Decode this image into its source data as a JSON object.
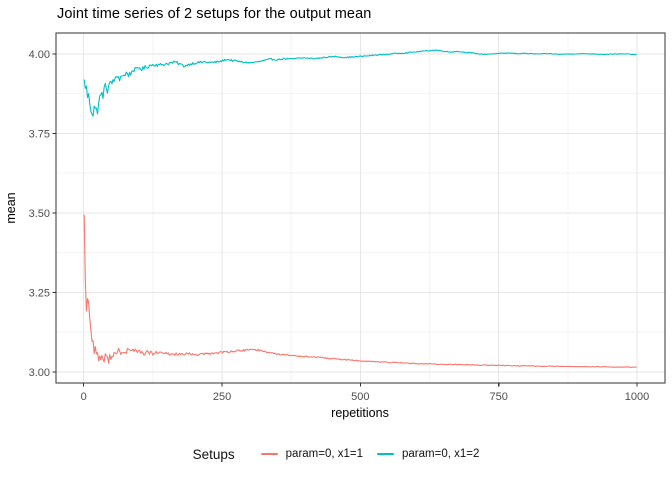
{
  "chart_data": {
    "type": "line",
    "title": "Joint time series of 2 setups for the output mean",
    "xlabel": "repetitions",
    "ylabel": "mean",
    "legend_title": "Setups",
    "legend_position": "bottom",
    "grid": "major-and-minor",
    "xlim": [
      -50,
      1050.5
    ],
    "ylim": [
      2.965,
      4.066
    ],
    "xticks": [
      0,
      250,
      500,
      750,
      1000
    ],
    "xtick_labels": [
      "0",
      "250",
      "500",
      "750",
      "1000"
    ],
    "yticks": [
      3.0,
      3.25,
      3.5,
      3.75,
      4.0
    ],
    "ytick_labels": [
      "3.00",
      "3.25",
      "3.50",
      "3.75",
      "4.00"
    ],
    "x_minor": [
      125,
      375,
      625,
      875
    ],
    "y_minor": [
      3.125,
      3.375,
      3.625,
      3.875
    ],
    "colors": {
      "major_grid": "#E6E6E6",
      "minor_grid": "#F3F3F3",
      "panel_border": "#333333",
      "tick_mark": "#333333",
      "tick_label": "#4D4D4D",
      "axis_title": "#000000",
      "background": "#FFFFFF"
    },
    "noise": {
      "step": 2,
      "base": 0.85,
      "offset": 12,
      "cap": 0.022,
      "floor": 0.0008
    },
    "series": [
      {
        "name": "param=0, x1=1",
        "color": "#F8766D",
        "seed": 77,
        "anchors": [
          [
            1,
            3.505
          ],
          [
            2,
            3.42
          ],
          [
            3,
            3.3
          ],
          [
            4,
            3.24
          ],
          [
            5,
            3.19
          ],
          [
            6,
            3.21
          ],
          [
            7,
            3.23
          ],
          [
            8,
            3.19
          ],
          [
            9,
            3.21
          ],
          [
            10,
            3.225
          ],
          [
            11,
            3.18
          ],
          [
            12,
            3.15
          ],
          [
            13,
            3.13
          ],
          [
            14,
            3.12
          ],
          [
            15,
            3.11
          ],
          [
            16,
            3.1
          ],
          [
            17,
            3.09
          ],
          [
            18,
            3.085
          ],
          [
            20,
            3.075
          ],
          [
            22,
            3.065
          ],
          [
            24,
            3.05
          ],
          [
            26,
            3.042
          ],
          [
            28,
            3.058
          ],
          [
            30,
            3.035
          ],
          [
            32,
            3.048
          ],
          [
            34,
            3.055
          ],
          [
            36,
            3.03
          ],
          [
            38,
            3.04
          ],
          [
            40,
            3.046
          ],
          [
            43,
            3.036
          ],
          [
            46,
            3.044
          ],
          [
            50,
            3.054
          ],
          [
            54,
            3.058
          ],
          [
            58,
            3.05
          ],
          [
            62,
            3.062
          ],
          [
            66,
            3.067
          ],
          [
            70,
            3.056
          ],
          [
            74,
            3.06
          ],
          [
            78,
            3.066
          ],
          [
            82,
            3.07
          ],
          [
            86,
            3.062
          ],
          [
            90,
            3.072
          ],
          [
            95,
            3.067
          ],
          [
            100,
            3.062
          ],
          [
            108,
            3.058
          ],
          [
            116,
            3.062
          ],
          [
            124,
            3.057
          ],
          [
            132,
            3.06
          ],
          [
            140,
            3.059
          ],
          [
            150,
            3.057
          ],
          [
            160,
            3.055
          ],
          [
            170,
            3.057
          ],
          [
            180,
            3.054
          ],
          [
            190,
            3.056
          ],
          [
            200,
            3.054
          ],
          [
            212,
            3.055
          ],
          [
            224,
            3.057
          ],
          [
            236,
            3.059
          ],
          [
            248,
            3.061
          ],
          [
            260,
            3.063
          ],
          [
            272,
            3.065
          ],
          [
            284,
            3.067
          ],
          [
            296,
            3.069
          ],
          [
            308,
            3.07
          ],
          [
            318,
            3.068
          ],
          [
            330,
            3.063
          ],
          [
            342,
            3.059
          ],
          [
            354,
            3.055
          ],
          [
            366,
            3.053
          ],
          [
            378,
            3.051
          ],
          [
            390,
            3.05
          ],
          [
            404,
            3.048
          ],
          [
            418,
            3.046
          ],
          [
            432,
            3.044
          ],
          [
            446,
            3.042
          ],
          [
            460,
            3.04
          ],
          [
            475,
            3.038
          ],
          [
            490,
            3.036
          ],
          [
            505,
            3.034
          ],
          [
            520,
            3.033
          ],
          [
            535,
            3.031
          ],
          [
            550,
            3.03
          ],
          [
            565,
            3.029
          ],
          [
            580,
            3.028
          ],
          [
            600,
            3.026
          ],
          [
            620,
            3.025
          ],
          [
            640,
            3.024
          ],
          [
            660,
            3.023
          ],
          [
            680,
            3.023
          ],
          [
            700,
            3.022
          ],
          [
            720,
            3.021
          ],
          [
            740,
            3.021
          ],
          [
            760,
            3.02
          ],
          [
            780,
            3.019
          ],
          [
            800,
            3.019
          ],
          [
            820,
            3.018
          ],
          [
            840,
            3.018
          ],
          [
            860,
            3.017
          ],
          [
            880,
            3.017
          ],
          [
            900,
            3.016
          ],
          [
            920,
            3.016
          ],
          [
            940,
            3.016
          ],
          [
            960,
            3.015
          ],
          [
            980,
            3.015
          ],
          [
            1000,
            3.015
          ]
        ]
      },
      {
        "name": "param=0, x1=2",
        "color": "#00BFC4",
        "seed": 1234,
        "anchors": [
          [
            1,
            3.91
          ],
          [
            2,
            3.845
          ],
          [
            3,
            3.905
          ],
          [
            4,
            3.82
          ],
          [
            5,
            3.888
          ],
          [
            6,
            3.83
          ],
          [
            7,
            3.87
          ],
          [
            8,
            3.825
          ],
          [
            9,
            3.862
          ],
          [
            10,
            3.82
          ],
          [
            11,
            3.852
          ],
          [
            12,
            3.858
          ],
          [
            13,
            3.83
          ],
          [
            14,
            3.86
          ],
          [
            15,
            3.825
          ],
          [
            16,
            3.852
          ],
          [
            17,
            3.815
          ],
          [
            18,
            3.845
          ],
          [
            20,
            3.83
          ],
          [
            22,
            3.812
          ],
          [
            24,
            3.822
          ],
          [
            26,
            3.84
          ],
          [
            28,
            3.852
          ],
          [
            30,
            3.862
          ],
          [
            33,
            3.872
          ],
          [
            36,
            3.878
          ],
          [
            40,
            3.898
          ],
          [
            43,
            3.89
          ],
          [
            46,
            3.906
          ],
          [
            50,
            3.902
          ],
          [
            54,
            3.923
          ],
          [
            58,
            3.916
          ],
          [
            62,
            3.932
          ],
          [
            66,
            3.922
          ],
          [
            70,
            3.938
          ],
          [
            74,
            3.928
          ],
          [
            78,
            3.944
          ],
          [
            82,
            3.933
          ],
          [
            86,
            3.942
          ],
          [
            90,
            3.952
          ],
          [
            95,
            3.948
          ],
          [
            100,
            3.958
          ],
          [
            106,
            3.952
          ],
          [
            112,
            3.958
          ],
          [
            118,
            3.963
          ],
          [
            124,
            3.966
          ],
          [
            130,
            3.968
          ],
          [
            136,
            3.964
          ],
          [
            142,
            3.967
          ],
          [
            150,
            3.969
          ],
          [
            158,
            3.972
          ],
          [
            166,
            3.974
          ],
          [
            174,
            3.968
          ],
          [
            182,
            3.962
          ],
          [
            190,
            3.967
          ],
          [
            198,
            3.971
          ],
          [
            208,
            3.973
          ],
          [
            218,
            3.975
          ],
          [
            228,
            3.973
          ],
          [
            238,
            3.974
          ],
          [
            248,
            3.977
          ],
          [
            258,
            3.983
          ],
          [
            268,
            3.98
          ],
          [
            278,
            3.977
          ],
          [
            290,
            3.974
          ],
          [
            302,
            3.972
          ],
          [
            314,
            3.975
          ],
          [
            326,
            3.979
          ],
          [
            338,
            3.984
          ],
          [
            350,
            3.982
          ],
          [
            362,
            3.985
          ],
          [
            374,
            3.984
          ],
          [
            386,
            3.986
          ],
          [
            398,
            3.988
          ],
          [
            410,
            3.986
          ],
          [
            422,
            3.986
          ],
          [
            434,
            3.989
          ],
          [
            446,
            3.991
          ],
          [
            458,
            3.992
          ],
          [
            470,
            3.989
          ],
          [
            482,
            3.99
          ],
          [
            494,
            3.992
          ],
          [
            506,
            3.993
          ],
          [
            518,
            3.995
          ],
          [
            530,
            3.997
          ],
          [
            542,
            3.998
          ],
          [
            554,
            4.0
          ],
          [
            566,
            4.002
          ],
          [
            578,
            4.003
          ],
          [
            590,
            4.005
          ],
          [
            602,
            4.007
          ],
          [
            614,
            4.009
          ],
          [
            626,
            4.011
          ],
          [
            638,
            4.012
          ],
          [
            650,
            4.009
          ],
          [
            662,
            4.006
          ],
          [
            674,
            4.008
          ],
          [
            686,
            4.006
          ],
          [
            698,
            4.004
          ],
          [
            710,
            4.001
          ],
          [
            722,
            3.999
          ],
          [
            734,
            4.0
          ],
          [
            746,
            4.001
          ],
          [
            758,
            4.002
          ],
          [
            770,
            4.003
          ],
          [
            782,
            4.001
          ],
          [
            794,
            4.002
          ],
          [
            806,
            4.001
          ],
          [
            820,
            4.0
          ],
          [
            840,
            4.001
          ],
          [
            860,
            3.999
          ],
          [
            880,
            4.0
          ],
          [
            900,
            4.001
          ],
          [
            920,
            4.0
          ],
          [
            940,
            3.999
          ],
          [
            960,
            4.0
          ],
          [
            980,
            4.0
          ],
          [
            1000,
            3.998
          ]
        ]
      }
    ]
  }
}
